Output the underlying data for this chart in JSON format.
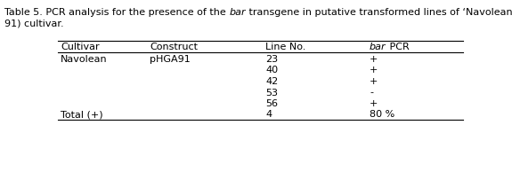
{
  "title_prefix": "Table 5. PCR analysis for the presence of the ",
  "title_italic": "bar",
  "title_suffix": " transgene in putative transformed lines of ‘Navolean’ (pHGA-",
  "title_line2": "91) cultivar.",
  "col_headers": [
    "Cultivar",
    "Construct",
    "Line No.",
    "bar PCR"
  ],
  "rows": [
    [
      "Navolean",
      "pHGA91",
      "23",
      "+"
    ],
    [
      "",
      "",
      "40",
      "+"
    ],
    [
      "",
      "",
      "42",
      "+"
    ],
    [
      "",
      "",
      "53",
      "-"
    ],
    [
      "",
      "",
      "56",
      "+"
    ],
    [
      "Total (+)",
      "",
      "4",
      "80 %"
    ]
  ],
  "font_size": 8.0,
  "background_color": "#ffffff",
  "fig_width": 5.75,
  "fig_height": 1.94,
  "dpi": 100
}
